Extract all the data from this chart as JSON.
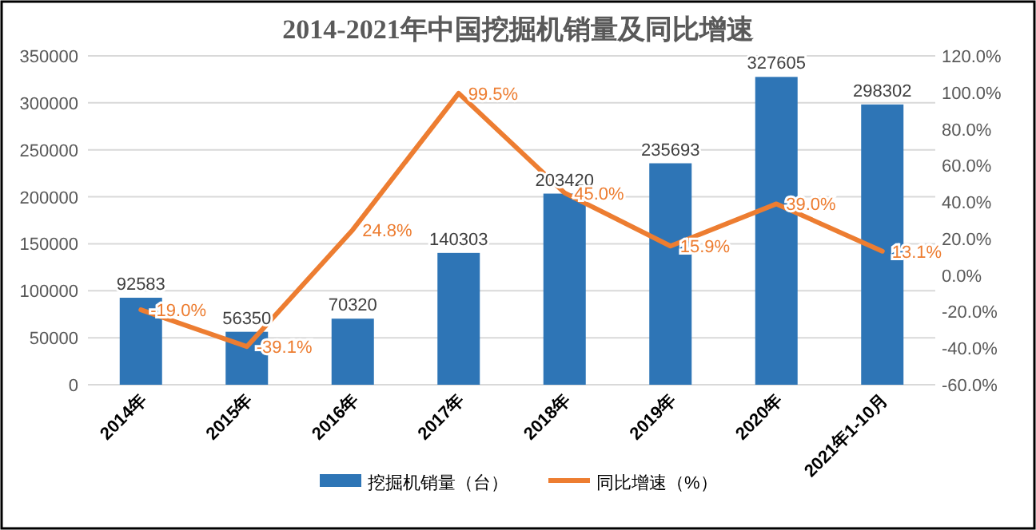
{
  "chart_data": {
    "type": "bar",
    "title": "2014-2021年中国挖掘机销量及同比增速",
    "categories": [
      "2014年",
      "2015年",
      "2016年",
      "2017年",
      "2018年",
      "2019年",
      "2020年",
      "2021年1-10月"
    ],
    "series": [
      {
        "name": "挖掘机销量（台）",
        "color": "#2e75b6",
        "values": [
          92583,
          56350,
          70320,
          140303,
          203420,
          235693,
          327605,
          298302
        ]
      },
      {
        "name": "同比增速（%）",
        "type": "line",
        "axis": "y2",
        "color": "#ed7d31",
        "values": [
          -19.0,
          -39.1,
          24.8,
          99.5,
          45.0,
          15.9,
          39.0,
          13.1
        ],
        "value_labels": [
          "-19.0%",
          "-39.1%",
          "24.8%",
          "99.5%",
          "45.0%",
          "15.9%",
          "39.0%",
          "13.1%"
        ]
      }
    ],
    "ylim": [
      0,
      350000
    ],
    "yticks": [
      0,
      50000,
      100000,
      150000,
      200000,
      250000,
      300000,
      350000
    ],
    "y2lim": [
      -60,
      120
    ],
    "y2ticks": [
      {
        "value": -60,
        "label": "-60.0%"
      },
      {
        "value": -40,
        "label": "-40.0%"
      },
      {
        "value": -20,
        "label": "-20.0%"
      },
      {
        "value": 0,
        "label": "0.0%"
      },
      {
        "value": 20,
        "label": "20.0%"
      },
      {
        "value": 40,
        "label": "40.0%"
      },
      {
        "value": 60,
        "label": "60.0%"
      },
      {
        "value": 80,
        "label": "80.0%"
      },
      {
        "value": 100,
        "label": "100.0%"
      },
      {
        "value": 120,
        "label": "120.0%"
      }
    ],
    "data_labels": true,
    "grid": "y",
    "legend": "bottom",
    "marker": "none",
    "line_style": "solid"
  }
}
